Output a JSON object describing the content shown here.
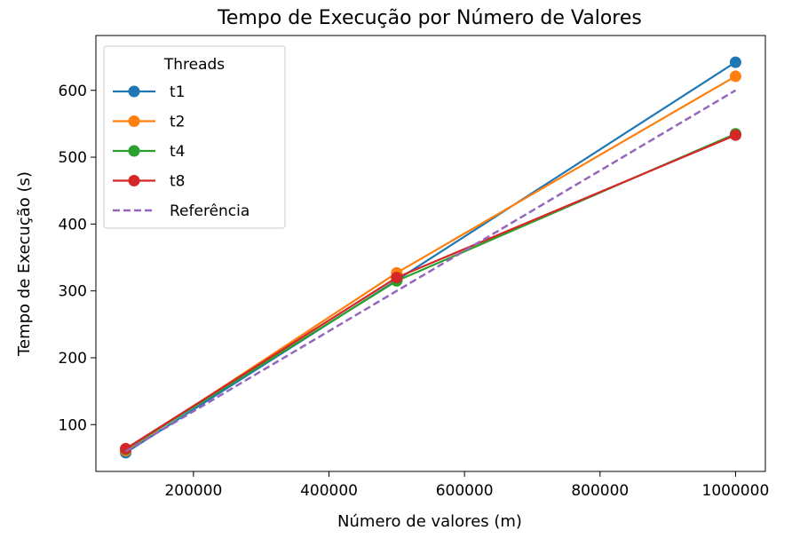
{
  "chart_data": {
    "type": "line",
    "title": "Tempo de Execução por Número de Valores",
    "xlabel": "Número de valores (m)",
    "ylabel": "Tempo de Execução (s)",
    "xlim": [
      56000,
      1044000
    ],
    "ylim": [
      30,
      682
    ],
    "xticks": [
      200000,
      400000,
      600000,
      800000,
      1000000
    ],
    "yticks": [
      100,
      200,
      300,
      400,
      500,
      600
    ],
    "x": [
      100000,
      500000,
      1000000
    ],
    "legend": {
      "title": "Threads",
      "placement": "upper-left"
    },
    "series": [
      {
        "name": "t1",
        "color": "#1f77b4",
        "style": "solid-marker",
        "values": [
          58,
          316,
          642
        ]
      },
      {
        "name": "t2",
        "color": "#ff7f0e",
        "style": "solid-marker",
        "values": [
          61,
          327,
          621
        ]
      },
      {
        "name": "t4",
        "color": "#2ca02c",
        "style": "solid-marker",
        "values": [
          63,
          315,
          535
        ]
      },
      {
        "name": "t8",
        "color": "#d62728",
        "style": "solid-marker",
        "values": [
          64,
          320,
          533
        ]
      },
      {
        "name": "Referência",
        "color": "#9467bd",
        "style": "dashed",
        "values": [
          60,
          300,
          600
        ]
      }
    ]
  }
}
